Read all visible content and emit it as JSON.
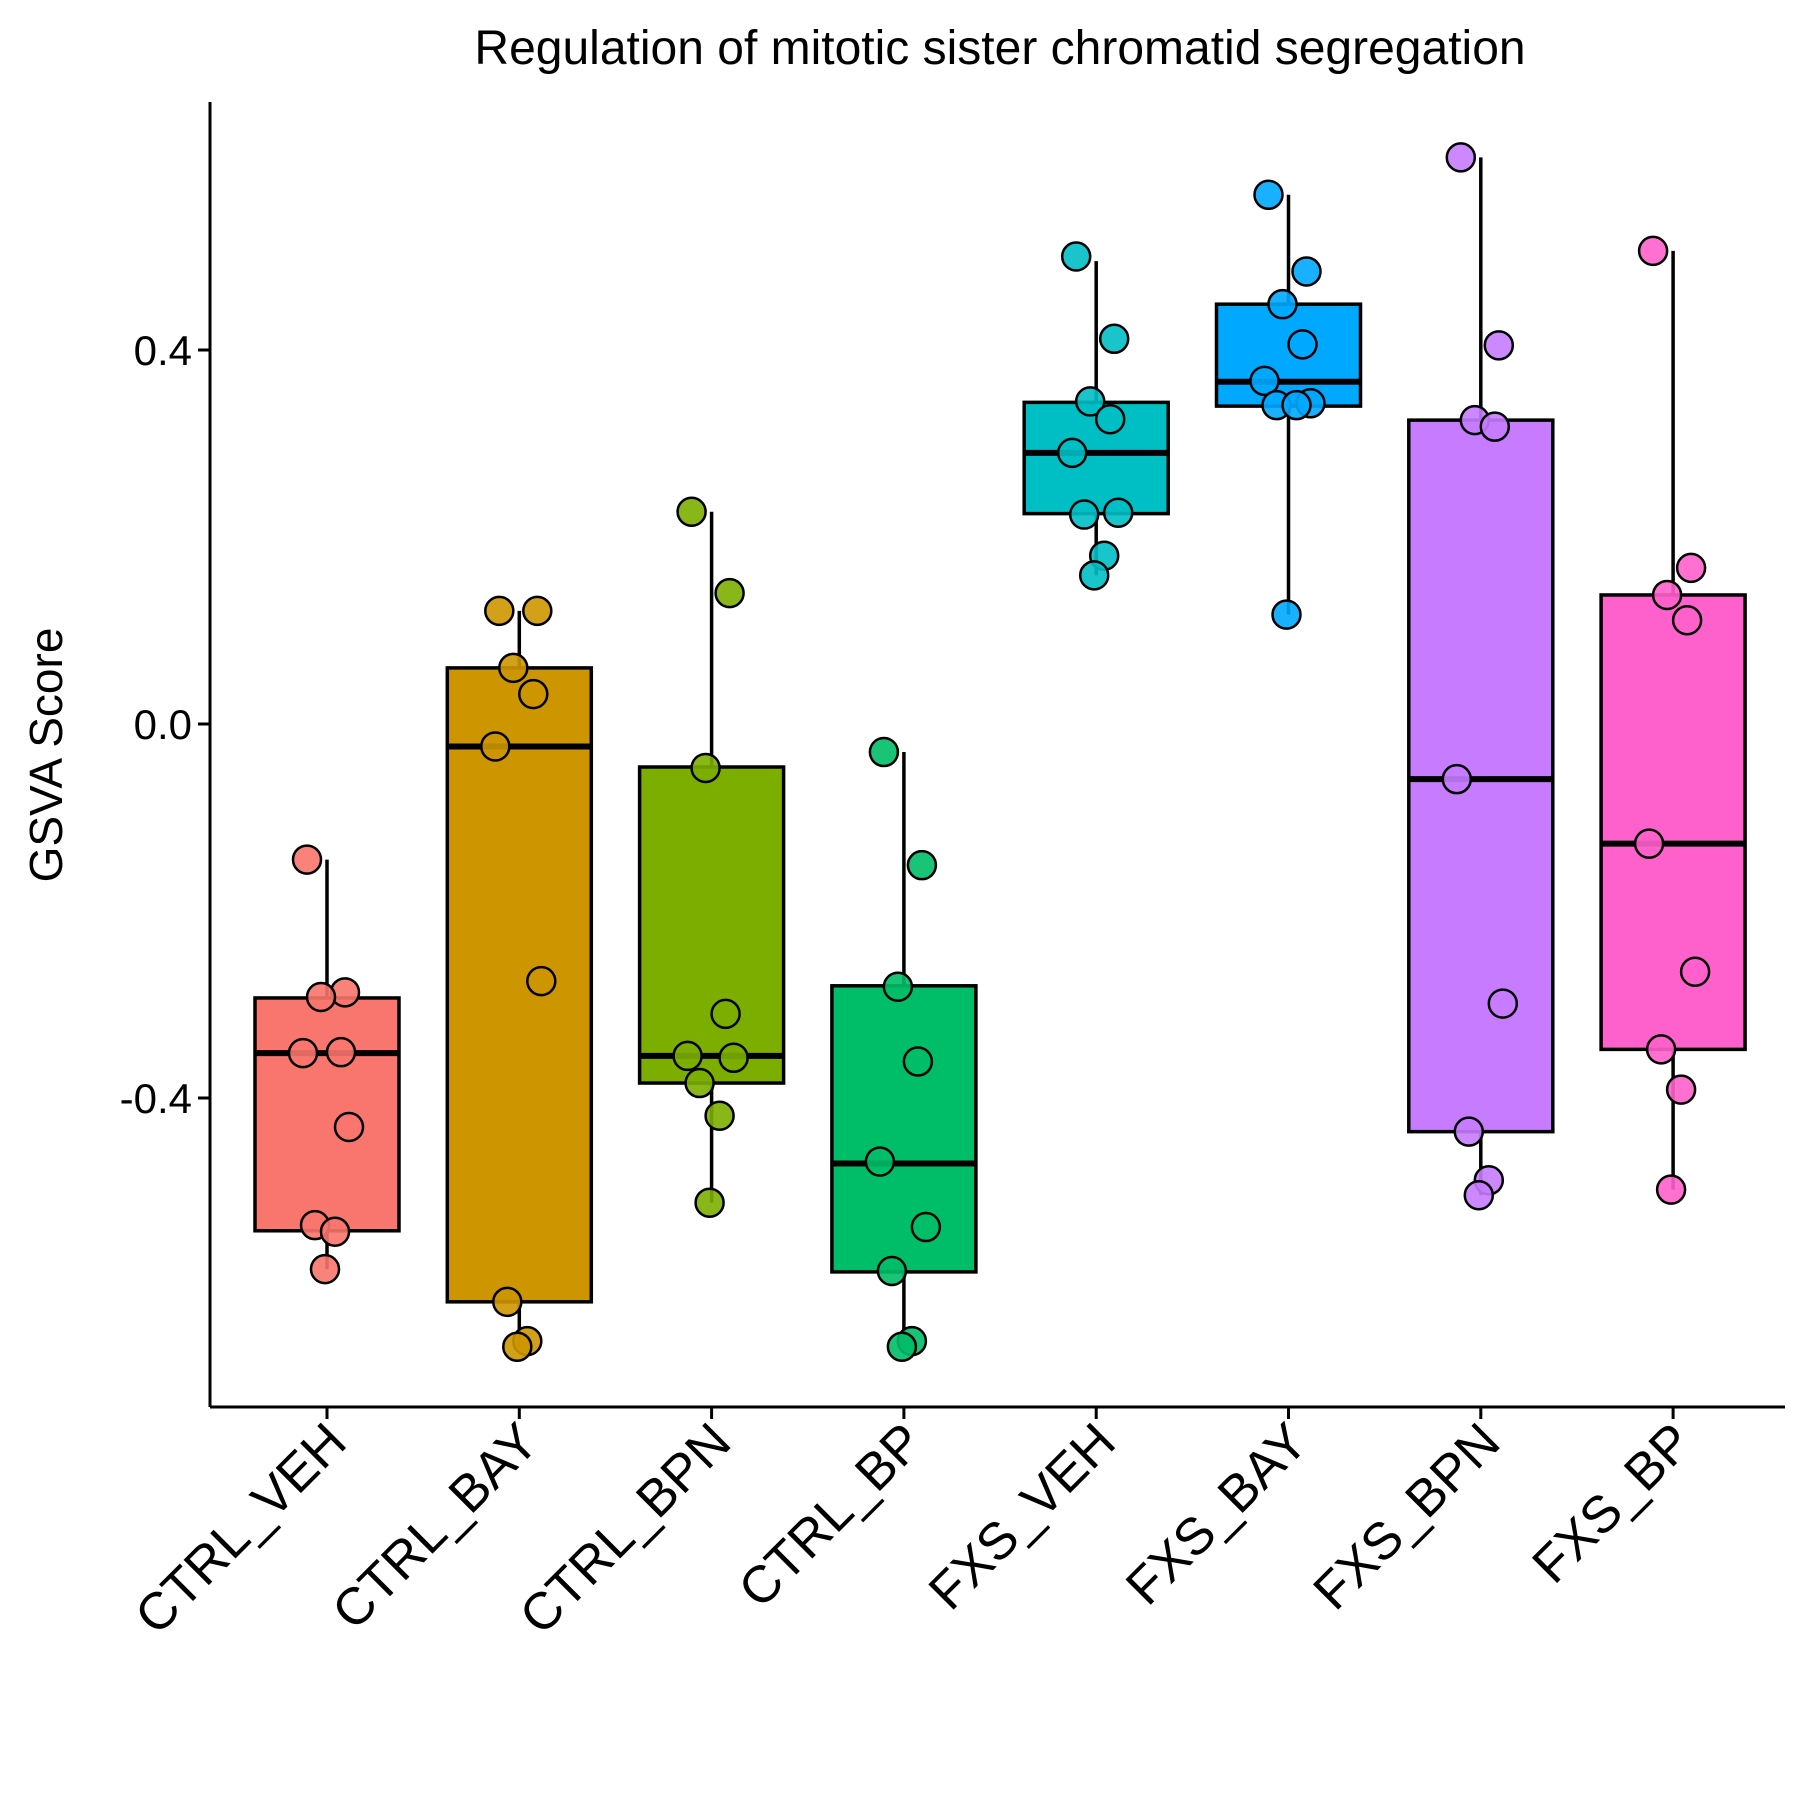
{
  "chart_data": {
    "type": "box",
    "title": "Regulation of mitotic sister chromatid segregation",
    "xlabel": "",
    "ylabel": "GSVA Score",
    "ylim": [
      -0.72,
      0.67
    ],
    "yticks": [
      {
        "value": 0.4,
        "label": "0.4"
      },
      {
        "value": 0.0,
        "label": "0.0"
      },
      {
        "value": -0.4,
        "label": "-0.4"
      }
    ],
    "grid": false,
    "legend": "none",
    "categories": [
      "CTRL_VEH",
      "CTRL_BAY",
      "CTRL_BPN",
      "CTRL_BP",
      "FXS_VEH",
      "FXS_BAY",
      "FXS_BPN",
      "FXS_BP"
    ],
    "groups": [
      {
        "name": "CTRL_VEH",
        "color": "#F8766D",
        "stats": {
          "lower_whisker": -0.583,
          "q1": -0.542,
          "median": -0.352,
          "q3": -0.293,
          "upper_whisker": -0.145
        },
        "points": [
          -0.145,
          -0.287,
          -0.292,
          -0.351,
          -0.352,
          -0.431,
          -0.536,
          -0.543,
          -0.583
        ]
      },
      {
        "name": "CTRL_BAY",
        "color": "#CD9600",
        "stats": {
          "lower_whisker": -0.666,
          "q1": -0.618,
          "median": -0.024,
          "q3": 0.06,
          "upper_whisker": 0.121
        },
        "points": [
          0.121,
          0.121,
          0.06,
          0.032,
          -0.024,
          -0.275,
          -0.618,
          -0.66,
          -0.666
        ]
      },
      {
        "name": "CTRL_BPN",
        "color": "#7CAE00",
        "stats": {
          "lower_whisker": -0.512,
          "q1": -0.384,
          "median": -0.355,
          "q3": -0.046,
          "upper_whisker": 0.227
        },
        "points": [
          0.227,
          0.14,
          -0.047,
          -0.31,
          -0.355,
          -0.357,
          -0.384,
          -0.419,
          -0.512
        ]
      },
      {
        "name": "CTRL_BP",
        "color": "#00BE67",
        "stats": {
          "lower_whisker": -0.666,
          "q1": -0.586,
          "median": -0.47,
          "q3": -0.28,
          "upper_whisker": -0.03
        },
        "points": [
          -0.03,
          -0.151,
          -0.281,
          -0.361,
          -0.468,
          -0.538,
          -0.585,
          -0.66,
          -0.666
        ]
      },
      {
        "name": "FXS_VEH",
        "color": "#00BFC4",
        "stats": {
          "lower_whisker": 0.159,
          "q1": 0.225,
          "median": 0.29,
          "q3": 0.344,
          "upper_whisker": 0.495
        },
        "points": [
          0.5,
          0.412,
          0.345,
          0.326,
          0.29,
          0.226,
          0.224,
          0.18,
          0.159
        ]
      },
      {
        "name": "FXS_BAY",
        "color": "#00A9FF",
        "stats": {
          "lower_whisker": 0.117,
          "q1": 0.34,
          "median": 0.366,
          "q3": 0.449,
          "upper_whisker": 0.566
        },
        "points": [
          0.566,
          0.484,
          0.449,
          0.406,
          0.367,
          0.343,
          0.341,
          0.341,
          0.117
        ]
      },
      {
        "name": "FXS_BPN",
        "color": "#C77CFF",
        "stats": {
          "lower_whisker": -0.504,
          "q1": -0.436,
          "median": -0.059,
          "q3": 0.325,
          "upper_whisker": 0.606
        },
        "points": [
          0.606,
          0.405,
          0.325,
          0.318,
          -0.059,
          -0.299,
          -0.436,
          -0.488,
          -0.504
        ]
      },
      {
        "name": "FXS_BP",
        "color": "#FF61CC",
        "stats": {
          "lower_whisker": -0.498,
          "q1": -0.348,
          "median": -0.128,
          "q3": 0.138,
          "upper_whisker": 0.506
        },
        "points": [
          0.506,
          0.167,
          0.138,
          0.111,
          -0.128,
          -0.265,
          -0.348,
          -0.391,
          -0.498
        ]
      }
    ]
  }
}
